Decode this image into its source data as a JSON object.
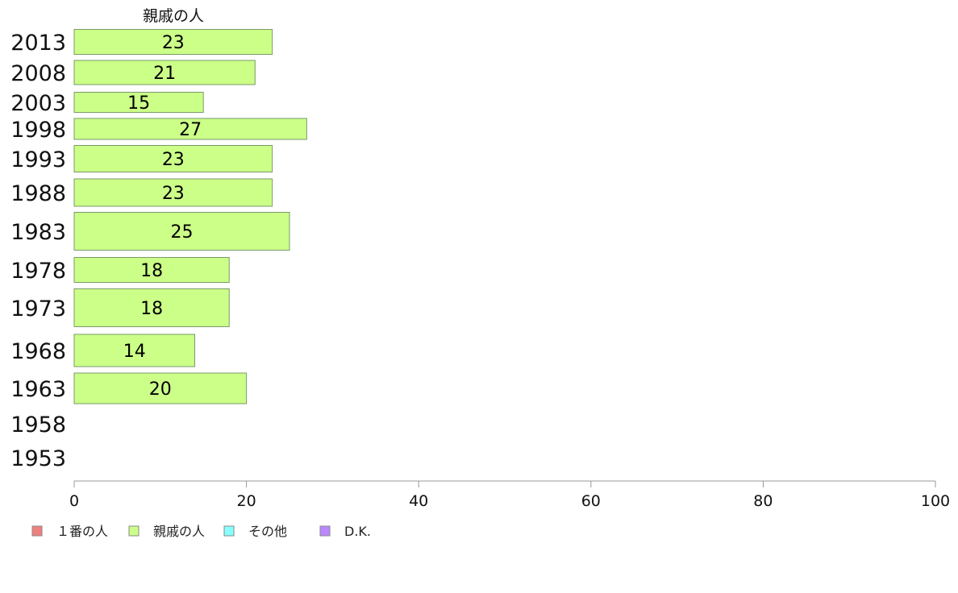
{
  "chart_data": {
    "type": "bar",
    "orientation": "horizontal",
    "title": "",
    "series_title": "親戚の人",
    "categories": [
      "2013",
      "2008",
      "2003",
      "1998",
      "1993",
      "1988",
      "1983",
      "1978",
      "1973",
      "1968",
      "1963",
      "1958",
      "1953"
    ],
    "series": [
      {
        "name": "親戚の人",
        "values": [
          23,
          21,
          15,
          27,
          23,
          23,
          25,
          18,
          18,
          14,
          20,
          null,
          null
        ],
        "color": "#ccff88"
      }
    ],
    "value_labels": [
      "23",
      "21",
      "15",
      "27",
      "23",
      "23",
      "25",
      "18",
      "18",
      "14",
      "20",
      "",
      ""
    ],
    "xlim": [
      0,
      100
    ],
    "xticks": [
      0,
      20,
      40,
      60,
      80,
      100
    ],
    "xlabel": "",
    "ylabel": "",
    "grid": false,
    "legend": {
      "position": "bottom-left",
      "items": [
        {
          "label": "１番の人",
          "color": "#f08080"
        },
        {
          "label": "親戚の人",
          "color": "#ccff88"
        },
        {
          "label": "その他",
          "color": "#88ffff"
        },
        {
          "label": "D.K.",
          "color": "#bb88ff"
        }
      ]
    }
  }
}
